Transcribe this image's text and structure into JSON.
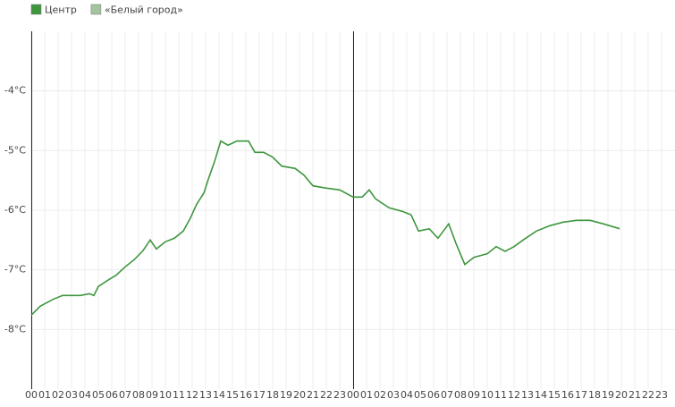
{
  "chart_data": {
    "type": "line",
    "x": [
      0,
      0.67,
      1.67,
      2.33,
      3.67,
      4.33,
      4.67,
      5,
      5.67,
      6.33,
      7,
      7.67,
      8.33,
      8.87,
      9.33,
      10,
      10.67,
      11.33,
      11.87,
      12.33,
      12.87,
      13.2,
      13.67,
      14.13,
      14.67,
      15.33,
      16.2,
      16.67,
      17.33,
      18,
      18.67,
      19.67,
      20.33,
      21,
      22,
      23,
      24,
      24.67,
      25.2,
      25.67,
      26.67,
      27.67,
      28.33,
      28.87,
      29.67,
      30.33,
      31.13,
      31.67,
      32.33,
      33,
      34,
      34.67,
      35.33,
      36,
      36.67,
      37.67,
      38.67,
      39.67,
      40.67,
      41.67,
      42.67,
      43.87
    ],
    "series": [
      {
        "name": "Центр",
        "color": "#3f963f",
        "values": [
          -7.76,
          -7.61,
          -7.49,
          -7.43,
          -7.43,
          -7.4,
          -7.43,
          -7.28,
          -7.18,
          -7.09,
          -6.95,
          -6.83,
          -6.68,
          -6.5,
          -6.65,
          -6.53,
          -6.47,
          -6.35,
          -6.13,
          -5.9,
          -5.71,
          -5.48,
          -5.18,
          -4.84,
          -4.91,
          -4.84,
          -4.84,
          -5.03,
          -5.03,
          -5.11,
          -5.26,
          -5.3,
          -5.41,
          -5.59,
          -5.63,
          -5.66,
          -5.78,
          -5.78,
          -5.66,
          -5.81,
          -5.96,
          -6.02,
          -6.08,
          -6.35,
          -6.31,
          -6.47,
          -6.23,
          -6.56,
          -6.91,
          -6.79,
          -6.73,
          -6.61,
          -6.69,
          -6.61,
          -6.5,
          -6.35,
          -6.26,
          -6.2,
          -6.17,
          -6.17,
          -6.23,
          -6.31
        ]
      },
      {
        "name": "«Белый город»",
        "color": "#a3c49f",
        "values": [
          null,
          null,
          null,
          null,
          null,
          null,
          null,
          null,
          null,
          null,
          null,
          null,
          null,
          null,
          null,
          null,
          null,
          null,
          null,
          null,
          null,
          null,
          null,
          null,
          null,
          null,
          null,
          null,
          null,
          null,
          null,
          null,
          null,
          null,
          null,
          null,
          null,
          null,
          null,
          null,
          null,
          null,
          null,
          null,
          null,
          null,
          null,
          null,
          null,
          null,
          null,
          null,
          null,
          null,
          null,
          null,
          null,
          null,
          null,
          null,
          null,
          null
        ]
      }
    ],
    "xlim": [
      0,
      48
    ],
    "xticks": [
      {
        "value": 0,
        "label": "00"
      },
      {
        "value": 1,
        "label": "01"
      },
      {
        "value": 2,
        "label": "02"
      },
      {
        "value": 3,
        "label": "03"
      },
      {
        "value": 4,
        "label": "04"
      },
      {
        "value": 5,
        "label": "05"
      },
      {
        "value": 6,
        "label": "06"
      },
      {
        "value": 7,
        "label": "07"
      },
      {
        "value": 8,
        "label": "08"
      },
      {
        "value": 9,
        "label": "09"
      },
      {
        "value": 10,
        "label": "10"
      },
      {
        "value": 11,
        "label": "11"
      },
      {
        "value": 12,
        "label": "12"
      },
      {
        "value": 13,
        "label": "13"
      },
      {
        "value": 14,
        "label": "14"
      },
      {
        "value": 15,
        "label": "15"
      },
      {
        "value": 16,
        "label": "16"
      },
      {
        "value": 17,
        "label": "17"
      },
      {
        "value": 18,
        "label": "18"
      },
      {
        "value": 19,
        "label": "19"
      },
      {
        "value": 20,
        "label": "20"
      },
      {
        "value": 21,
        "label": "21"
      },
      {
        "value": 22,
        "label": "22"
      },
      {
        "value": 23,
        "label": "23"
      },
      {
        "value": 24,
        "label": "00"
      },
      {
        "value": 25,
        "label": "01"
      },
      {
        "value": 26,
        "label": "02"
      },
      {
        "value": 27,
        "label": "03"
      },
      {
        "value": 28,
        "label": "04"
      },
      {
        "value": 29,
        "label": "05"
      },
      {
        "value": 30,
        "label": "06"
      },
      {
        "value": 31,
        "label": "07"
      },
      {
        "value": 32,
        "label": "08"
      },
      {
        "value": 33,
        "label": "09"
      },
      {
        "value": 34,
        "label": "10"
      },
      {
        "value": 35,
        "label": "11"
      },
      {
        "value": 36,
        "label": "12"
      },
      {
        "value": 37,
        "label": "13"
      },
      {
        "value": 38,
        "label": "14"
      },
      {
        "value": 39,
        "label": "15"
      },
      {
        "value": 40,
        "label": "16"
      },
      {
        "value": 41,
        "label": "17"
      },
      {
        "value": 42,
        "label": "18"
      },
      {
        "value": 43,
        "label": "19"
      },
      {
        "value": 44,
        "label": "20"
      },
      {
        "value": 45,
        "label": "21"
      },
      {
        "value": 46,
        "label": "22"
      },
      {
        "value": 47,
        "label": "23"
      }
    ],
    "ylim": [
      -9,
      -3
    ],
    "yticks": [
      {
        "value": -4,
        "label": "-4°C"
      },
      {
        "value": -5,
        "label": "-5°C"
      },
      {
        "value": -6,
        "label": "-6°C"
      },
      {
        "value": -7,
        "label": "-7°C"
      },
      {
        "value": -8,
        "label": "-8°C"
      }
    ],
    "grid": true
  }
}
